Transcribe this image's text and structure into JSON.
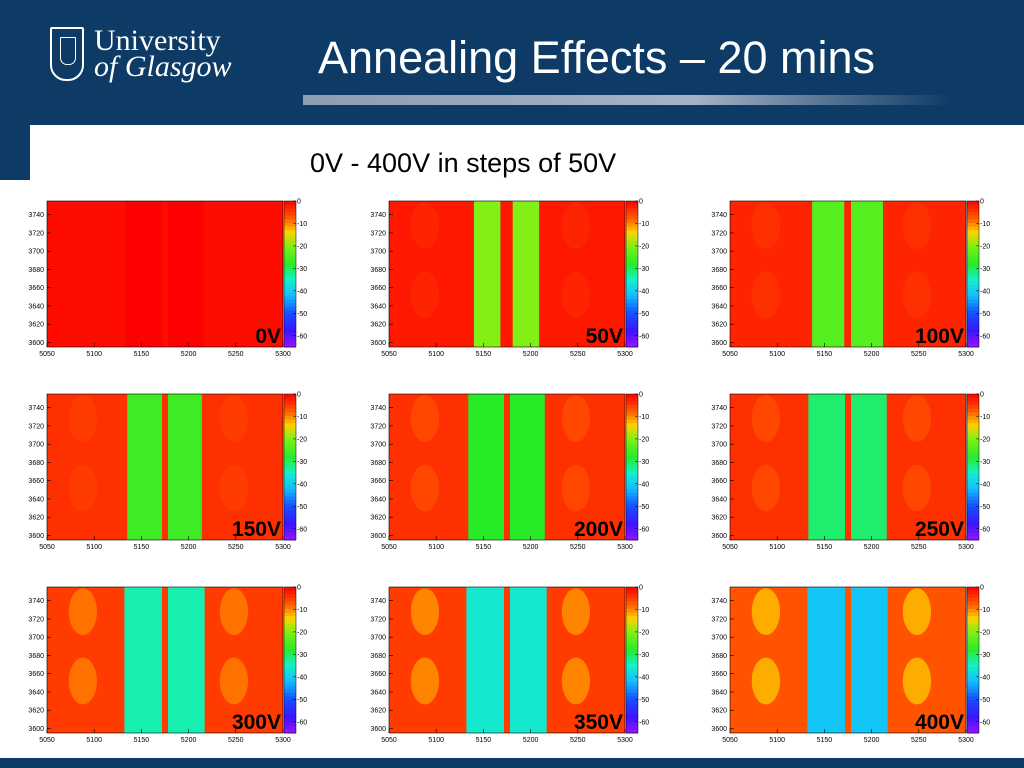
{
  "header": {
    "logo_line1": "University",
    "logo_line2": "of Glasgow",
    "title": "Annealing Effects – 20 mins"
  },
  "subtitle": "0V - 400V in steps of 50V",
  "colors": {
    "header_bg": "#0d3b66",
    "title_rule": "#a6b3c6",
    "red": "#ff2a00",
    "green": "#33ee33",
    "cyan": "#22eeee",
    "blue": "#2266ff"
  },
  "chart_data": [
    {
      "type": "heatmap",
      "label": "0V",
      "x_ticks": [
        "5050",
        "5100",
        "5150",
        "5200",
        "5250",
        "5300"
      ],
      "y_ticks": [
        "3740",
        "3720",
        "3700",
        "3680",
        "3660",
        "3640",
        "3620",
        "3600"
      ],
      "xlim": [
        5050,
        5300
      ],
      "ylim": [
        3595,
        3755
      ],
      "z_ticks": [
        "0",
        "-10",
        "-20",
        "-30",
        "-40",
        "-50",
        "-60"
      ],
      "zlim": [
        -65,
        0
      ],
      "strip_centers": [
        5154,
        5195
      ],
      "strip_half_width": 21,
      "center_gap_x": 5175,
      "strip_value": 0,
      "background_value": -1,
      "edge_lobe_value": -1
    },
    {
      "type": "heatmap",
      "label": "50V",
      "x_ticks": [
        "5050",
        "5100",
        "5150",
        "5200",
        "5250",
        "5300"
      ],
      "y_ticks": [
        "3740",
        "3720",
        "3700",
        "3680",
        "3660",
        "3640",
        "3620",
        "3600"
      ],
      "xlim": [
        5050,
        5300
      ],
      "ylim": [
        3595,
        3755
      ],
      "z_ticks": [
        "0",
        "-10",
        "-20",
        "-30",
        "-40",
        "-50",
        "-60"
      ],
      "zlim": [
        -65,
        0
      ],
      "strip_centers": [
        5154,
        5195
      ],
      "strip_half_width": 14,
      "center_gap_x": 5175,
      "strip_value": -20,
      "background_value": -2,
      "edge_lobe_value": -3
    },
    {
      "type": "heatmap",
      "label": "100V",
      "x_ticks": [
        "5050",
        "5100",
        "5150",
        "5200",
        "5250",
        "5300"
      ],
      "y_ticks": [
        "3740",
        "3720",
        "3700",
        "3680",
        "3660",
        "3640",
        "3620",
        "3600"
      ],
      "xlim": [
        5050,
        5300
      ],
      "ylim": [
        3595,
        3755
      ],
      "z_ticks": [
        "0",
        "-10",
        "-20",
        "-30",
        "-40",
        "-50",
        "-60"
      ],
      "zlim": [
        -65,
        0
      ],
      "strip_centers": [
        5154,
        5195
      ],
      "strip_half_width": 17,
      "center_gap_x": 5175,
      "strip_value": -24,
      "background_value": -3,
      "edge_lobe_value": -4
    },
    {
      "type": "heatmap",
      "label": "150V",
      "x_ticks": [
        "5050",
        "5100",
        "5150",
        "5200",
        "5250",
        "5300"
      ],
      "y_ticks": [
        "3740",
        "3720",
        "3700",
        "3680",
        "3660",
        "3640",
        "3620",
        "3600"
      ],
      "xlim": [
        5050,
        5300
      ],
      "ylim": [
        3595,
        3755
      ],
      "z_ticks": [
        "0",
        "-10",
        "-20",
        "-30",
        "-40",
        "-50",
        "-60"
      ],
      "zlim": [
        -65,
        0
      ],
      "strip_centers": [
        5154,
        5195
      ],
      "strip_half_width": 19,
      "center_gap_x": 5175,
      "strip_value": -26,
      "background_value": -4,
      "edge_lobe_value": -5
    },
    {
      "type": "heatmap",
      "label": "200V",
      "x_ticks": [
        "5050",
        "5100",
        "5150",
        "5200",
        "5250",
        "5300"
      ],
      "y_ticks": [
        "3740",
        "3720",
        "3700",
        "3680",
        "3660",
        "3640",
        "3620",
        "3600"
      ],
      "xlim": [
        5050,
        5300
      ],
      "ylim": [
        3595,
        3755
      ],
      "z_ticks": [
        "0",
        "-10",
        "-20",
        "-30",
        "-40",
        "-50",
        "-60"
      ],
      "zlim": [
        -65,
        0
      ],
      "strip_centers": [
        5154,
        5195
      ],
      "strip_half_width": 20,
      "center_gap_x": 5175,
      "strip_value": -28,
      "background_value": -4,
      "edge_lobe_value": -6
    },
    {
      "type": "heatmap",
      "label": "250V",
      "x_ticks": [
        "5050",
        "5100",
        "5150",
        "5200",
        "5250",
        "5300"
      ],
      "y_ticks": [
        "3740",
        "3720",
        "3700",
        "3680",
        "3660",
        "3640",
        "3620",
        "3600"
      ],
      "xlim": [
        5050,
        5300
      ],
      "ylim": [
        3595,
        3755
      ],
      "z_ticks": [
        "0",
        "-10",
        "-20",
        "-30",
        "-40",
        "-50",
        "-60"
      ],
      "zlim": [
        -65,
        0
      ],
      "strip_centers": [
        5154,
        5195
      ],
      "strip_half_width": 21,
      "center_gap_x": 5175,
      "strip_value": -31,
      "background_value": -4,
      "edge_lobe_value": -6
    },
    {
      "type": "heatmap",
      "label": "300V",
      "x_ticks": [
        "5050",
        "5100",
        "5150",
        "5200",
        "5250",
        "5300"
      ],
      "y_ticks": [
        "3740",
        "3720",
        "3700",
        "3680",
        "3660",
        "3640",
        "3620",
        "3600"
      ],
      "xlim": [
        5050,
        5300
      ],
      "ylim": [
        3595,
        3755
      ],
      "z_ticks": [
        "0",
        "-10",
        "-20",
        "-30",
        "-40",
        "-50",
        "-60"
      ],
      "zlim": [
        -65,
        0
      ],
      "strip_centers": [
        5154,
        5195
      ],
      "strip_half_width": 22,
      "center_gap_x": 5175,
      "strip_value": -34,
      "background_value": -5,
      "edge_lobe_value": -9
    },
    {
      "type": "heatmap",
      "label": "350V",
      "x_ticks": [
        "5050",
        "5100",
        "5150",
        "5200",
        "5250",
        "5300"
      ],
      "y_ticks": [
        "3740",
        "3720",
        "3700",
        "3680",
        "3660",
        "3640",
        "3620",
        "3600"
      ],
      "xlim": [
        5050,
        5300
      ],
      "ylim": [
        3595,
        3755
      ],
      "z_ticks": [
        "0",
        "-10",
        "-20",
        "-30",
        "-40",
        "-50",
        "-60"
      ],
      "zlim": [
        -65,
        0
      ],
      "strip_centers": [
        5154,
        5195
      ],
      "strip_half_width": 22,
      "center_gap_x": 5175,
      "strip_value": -36,
      "background_value": -5,
      "edge_lobe_value": -10
    },
    {
      "type": "heatmap",
      "label": "400V",
      "x_ticks": [
        "5050",
        "5100",
        "5150",
        "5200",
        "5250",
        "5300"
      ],
      "y_ticks": [
        "3740",
        "3720",
        "3700",
        "3680",
        "3660",
        "3640",
        "3620",
        "3600"
      ],
      "xlim": [
        5050,
        5300
      ],
      "ylim": [
        3595,
        3755
      ],
      "z_ticks": [
        "0",
        "-10",
        "-20",
        "-30",
        "-40",
        "-50",
        "-60"
      ],
      "zlim": [
        -65,
        0
      ],
      "strip_centers": [
        5154,
        5195
      ],
      "strip_half_width": 22,
      "center_gap_x": 5175,
      "strip_value": -41,
      "background_value": -7,
      "edge_lobe_value": -12
    }
  ]
}
